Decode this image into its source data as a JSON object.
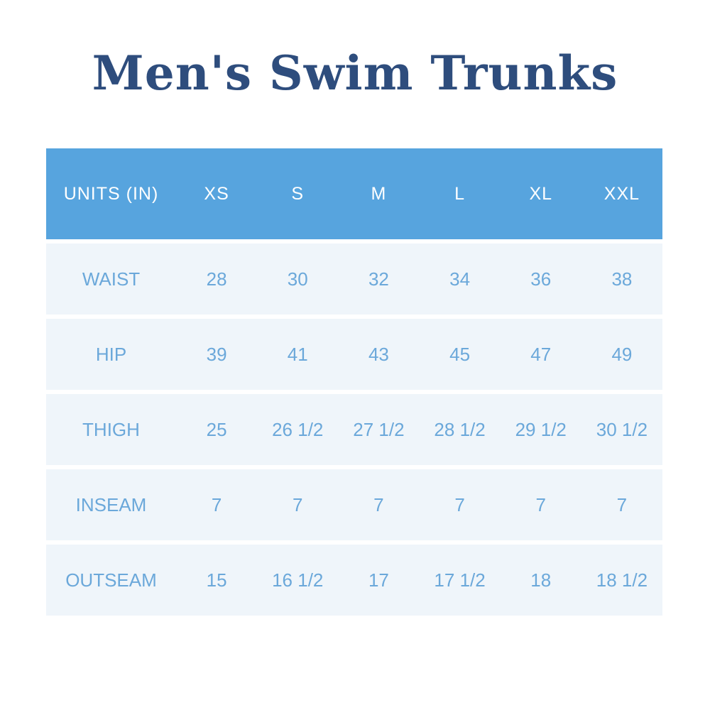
{
  "theme": {
    "page_bg": "#ffffff",
    "title_color": "#2e4d7d",
    "header_bg": "#57a4de",
    "header_text": "#ffffff",
    "row_bg": "#eff5fa",
    "row_text": "#6ba8da"
  },
  "title": {
    "text": "Men's Swim Trunks"
  },
  "table": {
    "header": {
      "label": "UNITS (IN)",
      "sizes": [
        "XS",
        "S",
        "M",
        "L",
        "XL",
        "XXL"
      ]
    },
    "rows": [
      {
        "label": "WAIST",
        "values": [
          "28",
          "30",
          "32",
          "34",
          "36",
          "38"
        ]
      },
      {
        "label": "HIP",
        "values": [
          "39",
          "41",
          "43",
          "45",
          "47",
          "49"
        ]
      },
      {
        "label": "THIGH",
        "values": [
          "25",
          "26 1/2",
          "27 1/2",
          "28 1/2",
          "29 1/2",
          "30 1/2"
        ]
      },
      {
        "label": "INSEAM",
        "values": [
          "7",
          "7",
          "7",
          "7",
          "7",
          "7"
        ]
      },
      {
        "label": "OUTSEAM",
        "values": [
          "15",
          "16 1/2",
          "17",
          "17 1/2",
          "18",
          "18 1/2"
        ]
      }
    ]
  },
  "chart_data": {
    "type": "table",
    "title": "Men's Swim Trunks",
    "unit_label": "UNITS (IN)",
    "columns": [
      "XS",
      "S",
      "M",
      "L",
      "XL",
      "XXL"
    ],
    "series": [
      {
        "name": "WAIST",
        "values": [
          28,
          30,
          32,
          34,
          36,
          38
        ]
      },
      {
        "name": "HIP",
        "values": [
          39,
          41,
          43,
          45,
          47,
          49
        ]
      },
      {
        "name": "THIGH",
        "values": [
          25,
          26.5,
          27.5,
          28.5,
          29.5,
          30.5
        ]
      },
      {
        "name": "INSEAM",
        "values": [
          7,
          7,
          7,
          7,
          7,
          7
        ]
      },
      {
        "name": "OUTSEAM",
        "values": [
          15,
          16.5,
          17,
          17.5,
          18,
          18.5
        ]
      }
    ]
  }
}
